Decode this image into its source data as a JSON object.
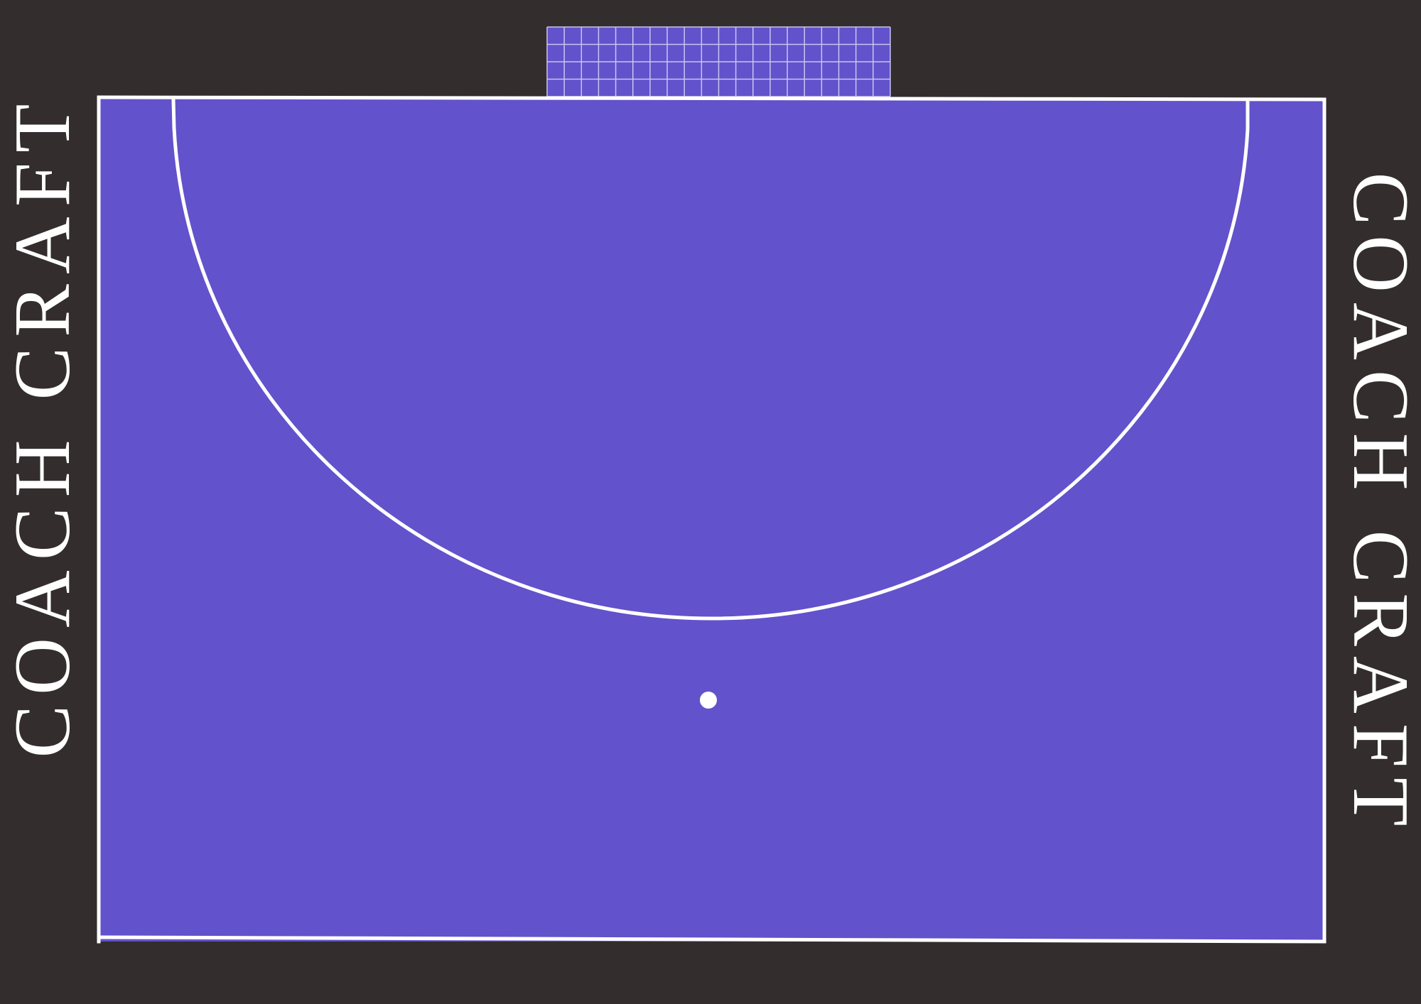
{
  "branding": {
    "left_text": "COACH CRAFT",
    "right_text": "COACH CRAFT"
  },
  "colors": {
    "background": "#332d2e",
    "court": "#6252cb",
    "lines": "#ffffff",
    "goal_net": "#6252cb",
    "goal_mesh": "#c9c4f0"
  }
}
